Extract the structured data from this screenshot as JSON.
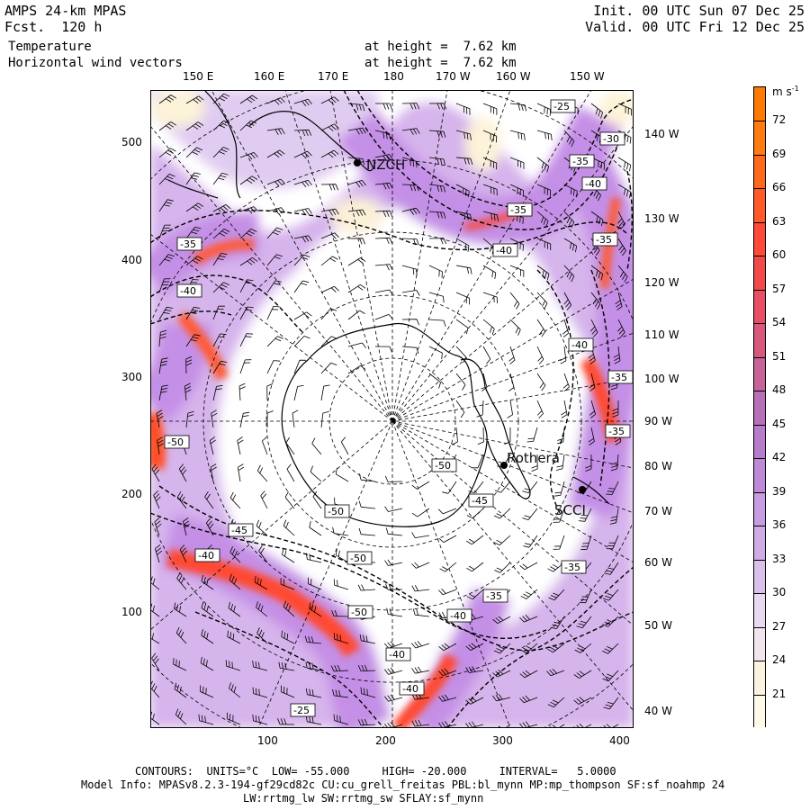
{
  "header": {
    "model": "AMPS 24-km MPAS",
    "forecast": "Fcst.  120 h",
    "field1": "Temperature",
    "field2": "Horizontal wind vectors",
    "height1": "at height =  7.62 km",
    "height2": "at height =  7.62 km",
    "init": "Init. 00 UTC Sun 07 Dec 25",
    "valid": "Valid. 00 UTC Fri 12 Dec 25"
  },
  "axes": {
    "top_lon": [
      "150 E",
      "160 E",
      "170 E",
      "180",
      "170 W",
      "160 W",
      "150 W"
    ],
    "right_lon": [
      "140 W",
      "130 W",
      "120 W",
      "110 W",
      "100 W",
      "90 W",
      "80 W",
      "70 W",
      "60 W",
      "50 W",
      "40 W"
    ],
    "left_grid": [
      "500",
      "400",
      "300",
      "200",
      "100"
    ],
    "bottom_grid": [
      "100",
      "200",
      "300",
      "400"
    ]
  },
  "colorbar": {
    "unit": "m s",
    "unit_sup": "-1",
    "labels": [
      "72",
      "69",
      "66",
      "63",
      "60",
      "57",
      "54",
      "51",
      "48",
      "45",
      "42",
      "39",
      "36",
      "33",
      "30",
      "27",
      "24",
      "21"
    ],
    "colors": [
      "#ff7a00",
      "#ff7d10",
      "#ff6a1a",
      "#ff5a28",
      "#ff4a3a",
      "#f24a4a",
      "#e84e64",
      "#d8587c",
      "#c8639a",
      "#b870b8",
      "#b77ccc",
      "#be8ad8",
      "#c79ce0",
      "#d0ace6",
      "#dbc0ec",
      "#e8d8f0",
      "#f2e6ee",
      "#fbf3e0",
      "#fdfbe8"
    ]
  },
  "contour_labels": [
    "-25",
    "-30",
    "-35",
    "-40",
    "-35",
    "-35",
    "-40",
    "-35",
    "-40",
    "-40",
    "-35",
    "-35",
    "-50",
    "-50",
    "-45",
    "-50",
    "-45",
    "-40",
    "-35",
    "-50",
    "-40",
    "-35",
    "-50",
    "-40",
    "-40",
    "-25"
  ],
  "stations": [
    "NZCH",
    "Rothera",
    "SCCI"
  ],
  "footer": {
    "contours": "CONTOURS:  UNITS=°C  LOW= -55.000     HIGH= -20.000     INTERVAL=   5.0000",
    "model_info": "Model Info: MPASv8.2.3-194-gf29cd82c CU:cu_grell_freitas PBL:bl_mynn MP:mp_thompson SF:sf_noahmp 24",
    "physics": "LW:rrtmg_lw SW:rrtmg_sw SFLAY:sf_mynn"
  }
}
